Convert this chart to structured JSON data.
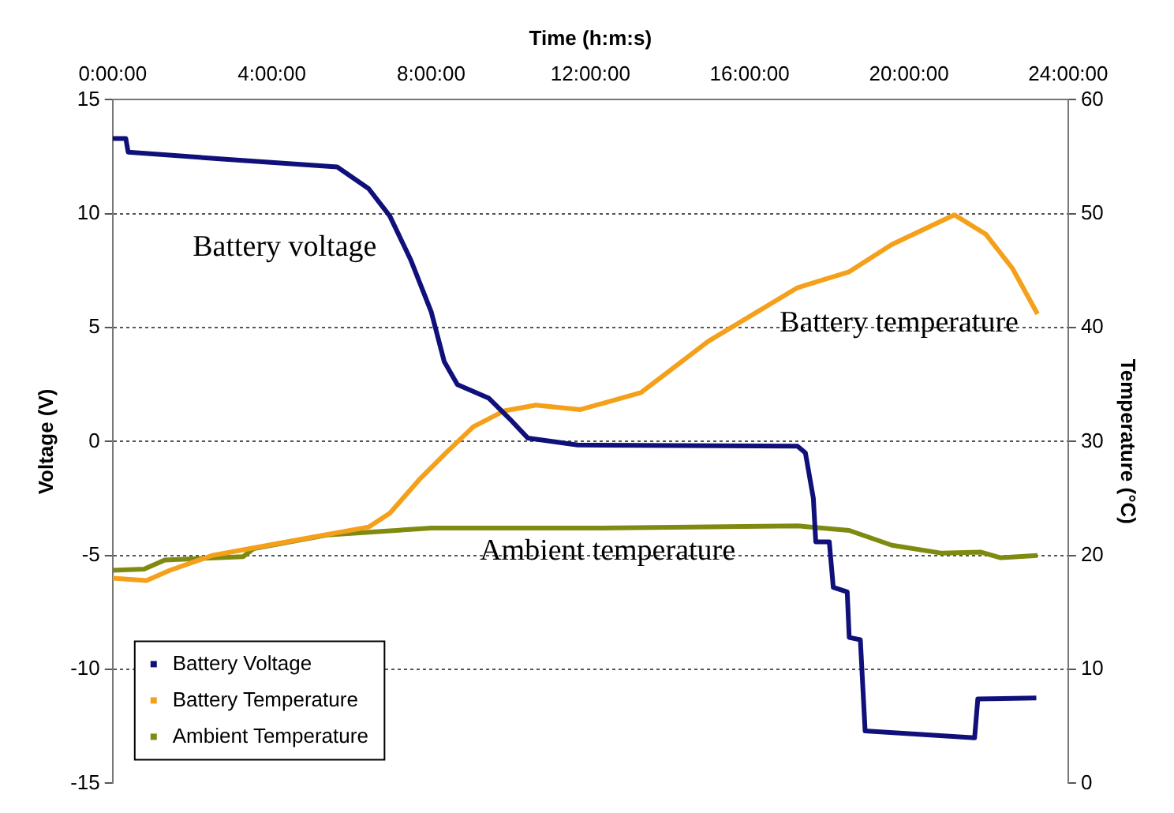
{
  "chart_data": {
    "type": "line",
    "xlabel": "Time (h:m:s)",
    "ylabel": "Voltage (V)",
    "y2label": "Temperature (°C)",
    "xlim": [
      0,
      24
    ],
    "xticks": [
      {
        "value": 0,
        "label": "0:00:00"
      },
      {
        "value": 4,
        "label": "4:00:00"
      },
      {
        "value": 8,
        "label": "8:00:00"
      },
      {
        "value": 12,
        "label": "12:00:00"
      },
      {
        "value": 16,
        "label": "16:00:00"
      },
      {
        "value": 20,
        "label": "20:00:00"
      },
      {
        "value": 24,
        "label": "24:00:00"
      }
    ],
    "ylim": [
      -15,
      15
    ],
    "yticks": [
      -15,
      -10,
      -5,
      0,
      5,
      10,
      15
    ],
    "y2lim": [
      0,
      60
    ],
    "y2ticks": [
      0,
      10,
      20,
      30,
      40,
      50,
      60
    ],
    "grid": "y",
    "legend": "bottom left",
    "series": [
      {
        "name": "Battery Voltage",
        "color": "#10107a",
        "axis": "y",
        "x": [
          0,
          0.33,
          0.39,
          2.76,
          5.64,
          6.43,
          6.96,
          7.48,
          8.0,
          8.33,
          8.66,
          9.45,
          9.97,
          10.43,
          11.68,
          17.2,
          17.4,
          17.6,
          17.66,
          18.0,
          18.1,
          18.45,
          18.5,
          18.78,
          18.9,
          21.65,
          21.73,
          23.2
        ],
        "values": [
          13.3,
          13.3,
          12.7,
          12.4,
          12.05,
          11.1,
          9.9,
          8.0,
          5.7,
          3.5,
          2.5,
          1.9,
          1.0,
          0.15,
          -0.15,
          -0.2,
          -0.5,
          -2.5,
          -4.4,
          -4.4,
          -6.4,
          -6.6,
          -8.6,
          -8.7,
          -12.7,
          -13.0,
          -11.3,
          -11.25
        ]
      },
      {
        "name": "Battery Temperature",
        "color": "#f5a01a",
        "axis": "y2",
        "x": [
          0,
          0.85,
          1.44,
          2.5,
          4.07,
          6.43,
          6.96,
          7.74,
          8.4,
          9.06,
          9.84,
          10.63,
          11.75,
          13.27,
          14.96,
          17.2,
          18.5,
          19.57,
          21.14,
          21.93,
          22.6,
          23.23
        ],
        "values": [
          18.0,
          17.8,
          18.7,
          20.0,
          21.0,
          22.5,
          23.7,
          26.8,
          29.1,
          31.3,
          32.7,
          33.2,
          32.8,
          34.3,
          38.8,
          43.5,
          44.9,
          47.3,
          49.9,
          48.2,
          45.2,
          41.2
        ]
      },
      {
        "name": "Ambient Temperature",
        "color": "#7f8a10",
        "axis": "y2",
        "x": [
          0,
          0.79,
          1.31,
          3.28,
          3.54,
          5.38,
          8.0,
          11.94,
          17.2,
          18.5,
          19.57,
          20.83,
          21.8,
          22.3,
          23.23
        ],
        "values": [
          18.7,
          18.8,
          19.6,
          19.9,
          20.6,
          21.8,
          22.4,
          22.4,
          22.6,
          22.2,
          20.9,
          20.2,
          20.3,
          19.8,
          20.0
        ]
      }
    ],
    "annotations": [
      "Battery voltage",
      "Battery temperature",
      "Ambient temperature"
    ]
  }
}
